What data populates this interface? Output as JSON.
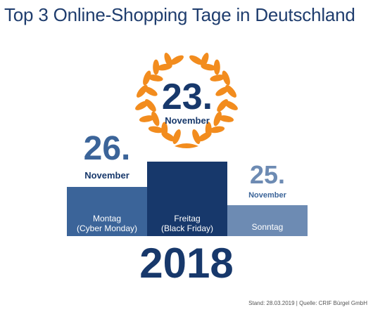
{
  "title": "Top 3 Online-Shopping Tage in Deutschland",
  "year": "2018",
  "source": "Stand: 28.03.2019 | Quelle: CRIF Bürgel GmbH",
  "colors": {
    "first": "#17386b",
    "second": "#3b6499",
    "third": "#6d8bb3",
    "wreath": "#f28c1e"
  },
  "chart_data": {
    "type": "bar",
    "categories": [
      "Montag (Cyber Monday)",
      "Freitag (Black Friday)",
      "Sonntag"
    ],
    "series": [
      {
        "values": [
          2,
          1,
          3
        ]
      }
    ],
    "podium": [
      {
        "rank": 2,
        "day_number": "26.",
        "month": "November",
        "weekday": "Montag",
        "sub": "(Cyber Monday)"
      },
      {
        "rank": 1,
        "day_number": "23.",
        "month": "November",
        "weekday": "Freitag",
        "sub": "(Black Friday)"
      },
      {
        "rank": 3,
        "day_number": "25.",
        "month": "November",
        "weekday": "Sonntag",
        "sub": ""
      }
    ],
    "title": "Top 3 Online-Shopping Tage in Deutschland"
  }
}
